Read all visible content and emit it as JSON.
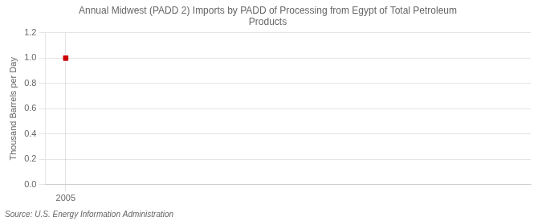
{
  "chart_data": {
    "type": "scatter",
    "title": "Annual Midwest (PADD 2) Imports by PADD of Processing from Egypt of Total Petroleum\nProducts",
    "y_label": "Thousand Barrels per Day",
    "annotations": [
      "Source: U.S. Energy Information Administration"
    ],
    "x": [
      2005
    ],
    "values": [
      1.0
    ],
    "color": "#cc0000",
    "marker": "square",
    "xlim": [
      2004.3,
      2021
    ],
    "ylim": [
      0.0,
      1.2
    ],
    "xticks": [
      2005
    ],
    "yticks": [
      {
        "value": 0.0,
        "label": "0.0"
      },
      0.2,
      0.4,
      0.6,
      0.8,
      {
        "value": 1.0,
        "label": "1.0"
      },
      1.2
    ],
    "grid": true
  }
}
